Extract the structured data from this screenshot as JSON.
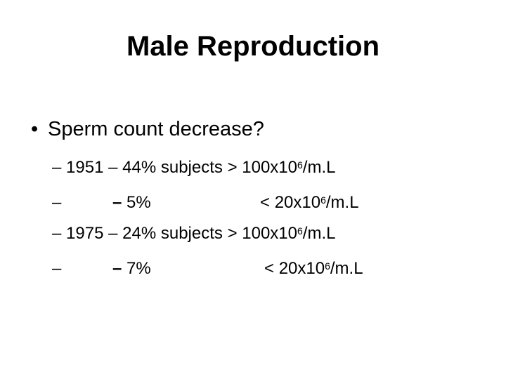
{
  "slide": {
    "title": "Male Reproduction",
    "bullet": {
      "marker": "•",
      "text": "Sperm count decrease?"
    },
    "lines": [
      {
        "dash": "–",
        "year": "1951",
        "sep": "–",
        "percent": "44%",
        "subject_text": "subjects",
        "comparator": ">",
        "count_base": "100x10",
        "exponent": "6",
        "unit": "/m.L"
      },
      {
        "dash": "–",
        "sep": "–",
        "percent": "5%",
        "comparator": "<",
        "count_base": "20x10",
        "exponent": "6",
        "unit": "/m.L"
      },
      {
        "dash": "–",
        "year": "1975",
        "sep": "–",
        "percent": "24%",
        "subject_text": "subjects",
        "comparator": ">",
        "count_base": "100x10",
        "exponent": "6",
        "unit": "/m.L"
      },
      {
        "dash": "–",
        "sep": "–",
        "percent": "7%",
        "comparator": "<",
        "count_base": "20x10",
        "exponent": "6",
        "unit": "/m.L"
      }
    ]
  }
}
